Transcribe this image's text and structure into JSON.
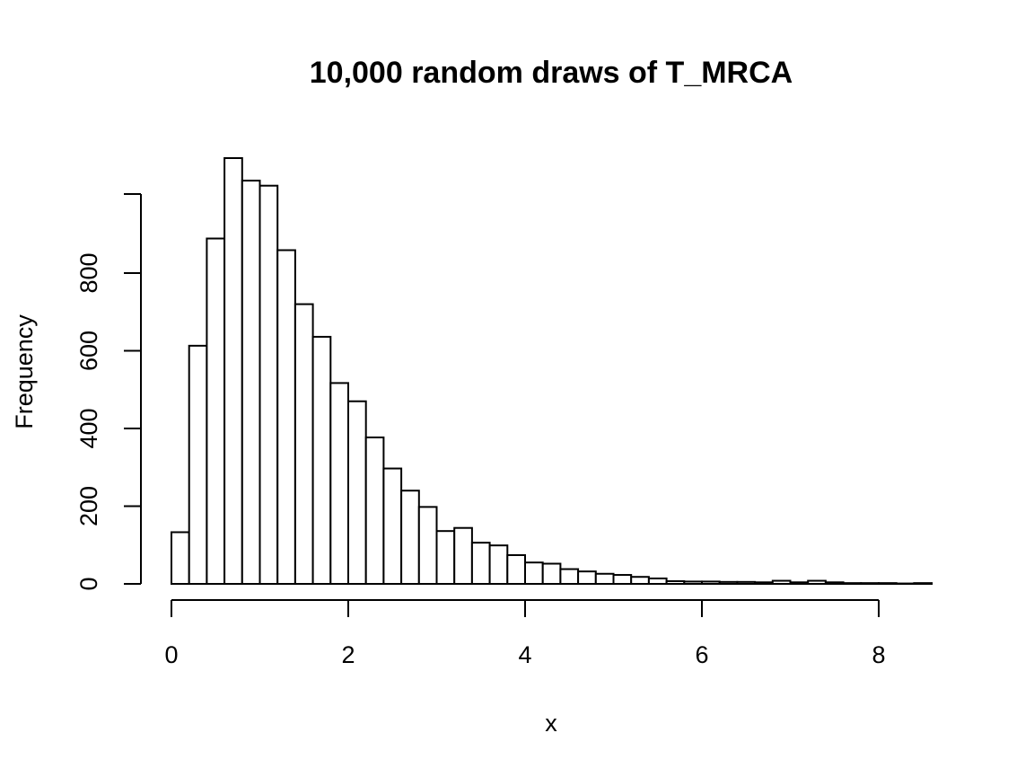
{
  "chart_data": {
    "type": "bar",
    "title": "10,000 random draws of T_MRCA",
    "xlabel": "x",
    "ylabel": "Frequency",
    "bin_width": 0.2,
    "x_start": 0.0,
    "values": [
      133,
      613,
      889,
      1096,
      1038,
      1025,
      859,
      720,
      636,
      517,
      470,
      377,
      297,
      240,
      198,
      136,
      144,
      106,
      99,
      74,
      55,
      52,
      38,
      32,
      26,
      23,
      18,
      14,
      7,
      6,
      6,
      5,
      5,
      4,
      8,
      4,
      8,
      4,
      2,
      2,
      2,
      1,
      2
    ],
    "xlim": [
      0,
      8.6
    ],
    "ylim": [
      0,
      1096
    ],
    "xticks": [
      0,
      2,
      4,
      6,
      8
    ],
    "yticks": [
      0,
      200,
      400,
      600,
      800
    ],
    "grid": false,
    "bar_fill": "#ffffff",
    "bar_stroke": "#000000"
  }
}
